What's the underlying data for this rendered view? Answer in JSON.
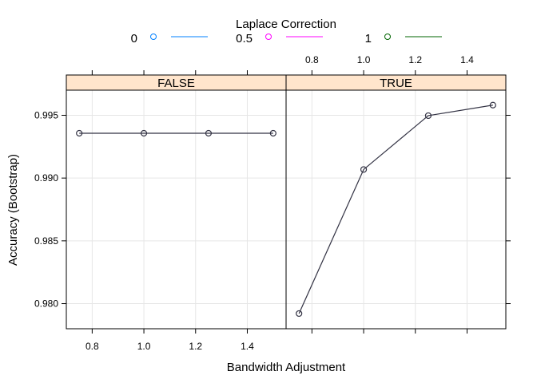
{
  "chart_data": {
    "type": "line",
    "legend": {
      "title": "Laplace Correction",
      "placement": "top",
      "entries": [
        {
          "label": "0",
          "color": "#0080ff"
        },
        {
          "label": "0.5",
          "color": "#ff00ff"
        },
        {
          "label": "1",
          "color": "#006400"
        }
      ]
    },
    "xlabel": "Bandwidth Adjustment",
    "ylabel": "Accuracy (Bootstrap)",
    "xlim": [
      0.7,
      1.55
    ],
    "ylim": [
      0.978,
      0.997
    ],
    "x_ticks": [
      "0.8",
      "1.0",
      "1.2",
      "1.4"
    ],
    "y_ticks": [
      "0.980",
      "0.985",
      "0.990",
      "0.995"
    ],
    "grid": true,
    "line_color": "#333344",
    "panels": [
      {
        "strip": "FALSE",
        "series": [
          {
            "x": [
              0.75,
              1.0,
              1.25,
              1.5
            ],
            "y": [
              0.99357,
              0.99357,
              0.99357,
              0.99357
            ]
          }
        ]
      },
      {
        "strip": "TRUE",
        "series": [
          {
            "x": [
              0.75,
              1.0,
              1.25,
              1.5
            ],
            "y": [
              0.97921,
              0.99068,
              0.99497,
              0.99581
            ]
          }
        ]
      }
    ]
  }
}
